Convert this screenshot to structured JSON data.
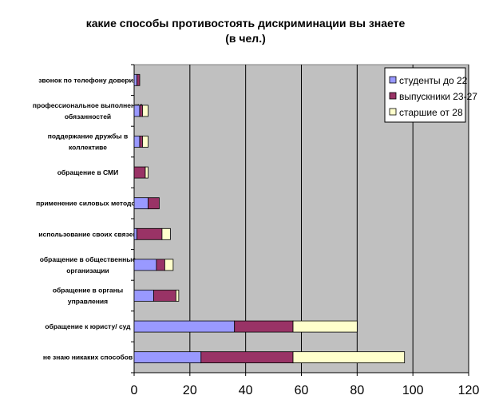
{
  "chart_data": {
    "type": "bar",
    "orientation": "horizontal",
    "stacked": true,
    "title": "какие способы противостоять дискриминации вы знаете",
    "subtitle": "(в чел.)",
    "xlim": [
      0,
      120
    ],
    "xticks": [
      0,
      20,
      40,
      60,
      80,
      100,
      120
    ],
    "grid": "vertical",
    "legend_position": "top-right",
    "categories": [
      "звонок по телефону доверия",
      "профессиональное выполнение обязанностей",
      "поддержание дружбы в коллективе",
      "обращение в СМИ",
      "применение силовых методов",
      "использование своих связей",
      "обращение в общественные организации",
      "обращение в органы управления",
      "обращение к юристу/ суд",
      "не знаю никаких способов"
    ],
    "series": [
      {
        "name": "студенты до 22",
        "color": "#9999ff",
        "values": [
          1,
          2,
          2,
          0,
          5,
          1,
          8,
          7,
          36,
          24
        ]
      },
      {
        "name": "выпускники 23-27",
        "color": "#993366",
        "values": [
          1,
          1,
          1,
          4,
          4,
          9,
          3,
          8,
          21,
          33
        ]
      },
      {
        "name": "старшие от 28",
        "color": "#ffffcc",
        "values": [
          0,
          2,
          2,
          1,
          0,
          3,
          3,
          1,
          23,
          40
        ]
      }
    ],
    "plot_background": "#c0c0c0"
  }
}
